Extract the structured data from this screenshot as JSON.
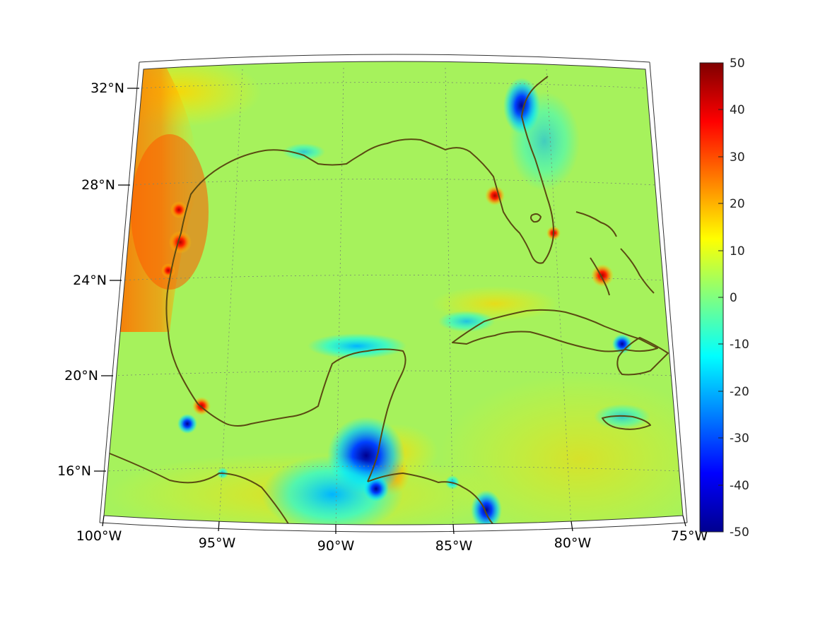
{
  "map": {
    "lat_labels": [
      "32°N",
      "28°N",
      "24°N",
      "20°N",
      "16°N"
    ],
    "lon_labels": [
      "100°W",
      "95°W",
      "90°W",
      "85°W",
      "80°W",
      "75°W"
    ],
    "extent": {
      "lon": [
        -100,
        -75
      ],
      "lat": [
        14,
        33
      ]
    },
    "coastline_color": "#5a4a12",
    "graticule": "dotted"
  },
  "colorbar": {
    "ticks": [
      "50",
      "40",
      "30",
      "20",
      "10",
      "0",
      "-10",
      "-20",
      "-30",
      "-40",
      "-50"
    ],
    "range": [
      -50,
      50
    ],
    "colormap": "jet",
    "colors": [
      "#7f0000",
      "#ff0000",
      "#ff7f00",
      "#ffff00",
      "#80ff80",
      "#00ffff",
      "#0080ff",
      "#0000ff",
      "#00008f"
    ]
  }
}
